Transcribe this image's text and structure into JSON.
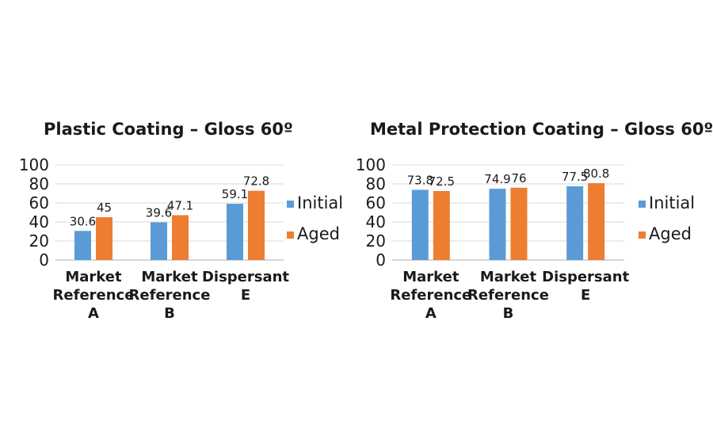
{
  "chart_data": [
    {
      "type": "bar",
      "title": "Plastic Coating – Gloss 60º",
      "categories": [
        [
          "Market",
          "Reference",
          "A"
        ],
        [
          "Market",
          "Reference",
          "B"
        ],
        [
          "Dispersant",
          "E"
        ]
      ],
      "series": [
        {
          "name": "Initial",
          "values": [
            30.6,
            39.6,
            59.1
          ],
          "color": "#5b9bd5"
        },
        {
          "name": "Aged",
          "values": [
            45,
            47.1,
            72.8
          ],
          "color": "#ed7d31"
        }
      ],
      "ylim": [
        0,
        100
      ],
      "yticks": [
        0,
        20,
        40,
        60,
        80,
        100
      ],
      "grid": true,
      "legend": "right"
    },
    {
      "type": "bar",
      "title": "Metal Protection Coating – Gloss 60º",
      "categories": [
        [
          "Market",
          "Reference",
          "A"
        ],
        [
          "Market",
          "Reference",
          "B"
        ],
        [
          "Dispersant",
          "E"
        ]
      ],
      "series": [
        {
          "name": "Initial",
          "values": [
            73.8,
            74.9,
            77.5
          ],
          "color": "#5b9bd5"
        },
        {
          "name": "Aged",
          "values": [
            72.5,
            76,
            80.8
          ],
          "color": "#ed7d31"
        }
      ],
      "ylim": [
        0,
        100
      ],
      "yticks": [
        0,
        20,
        40,
        60,
        80,
        100
      ],
      "grid": true,
      "legend": "right"
    }
  ]
}
